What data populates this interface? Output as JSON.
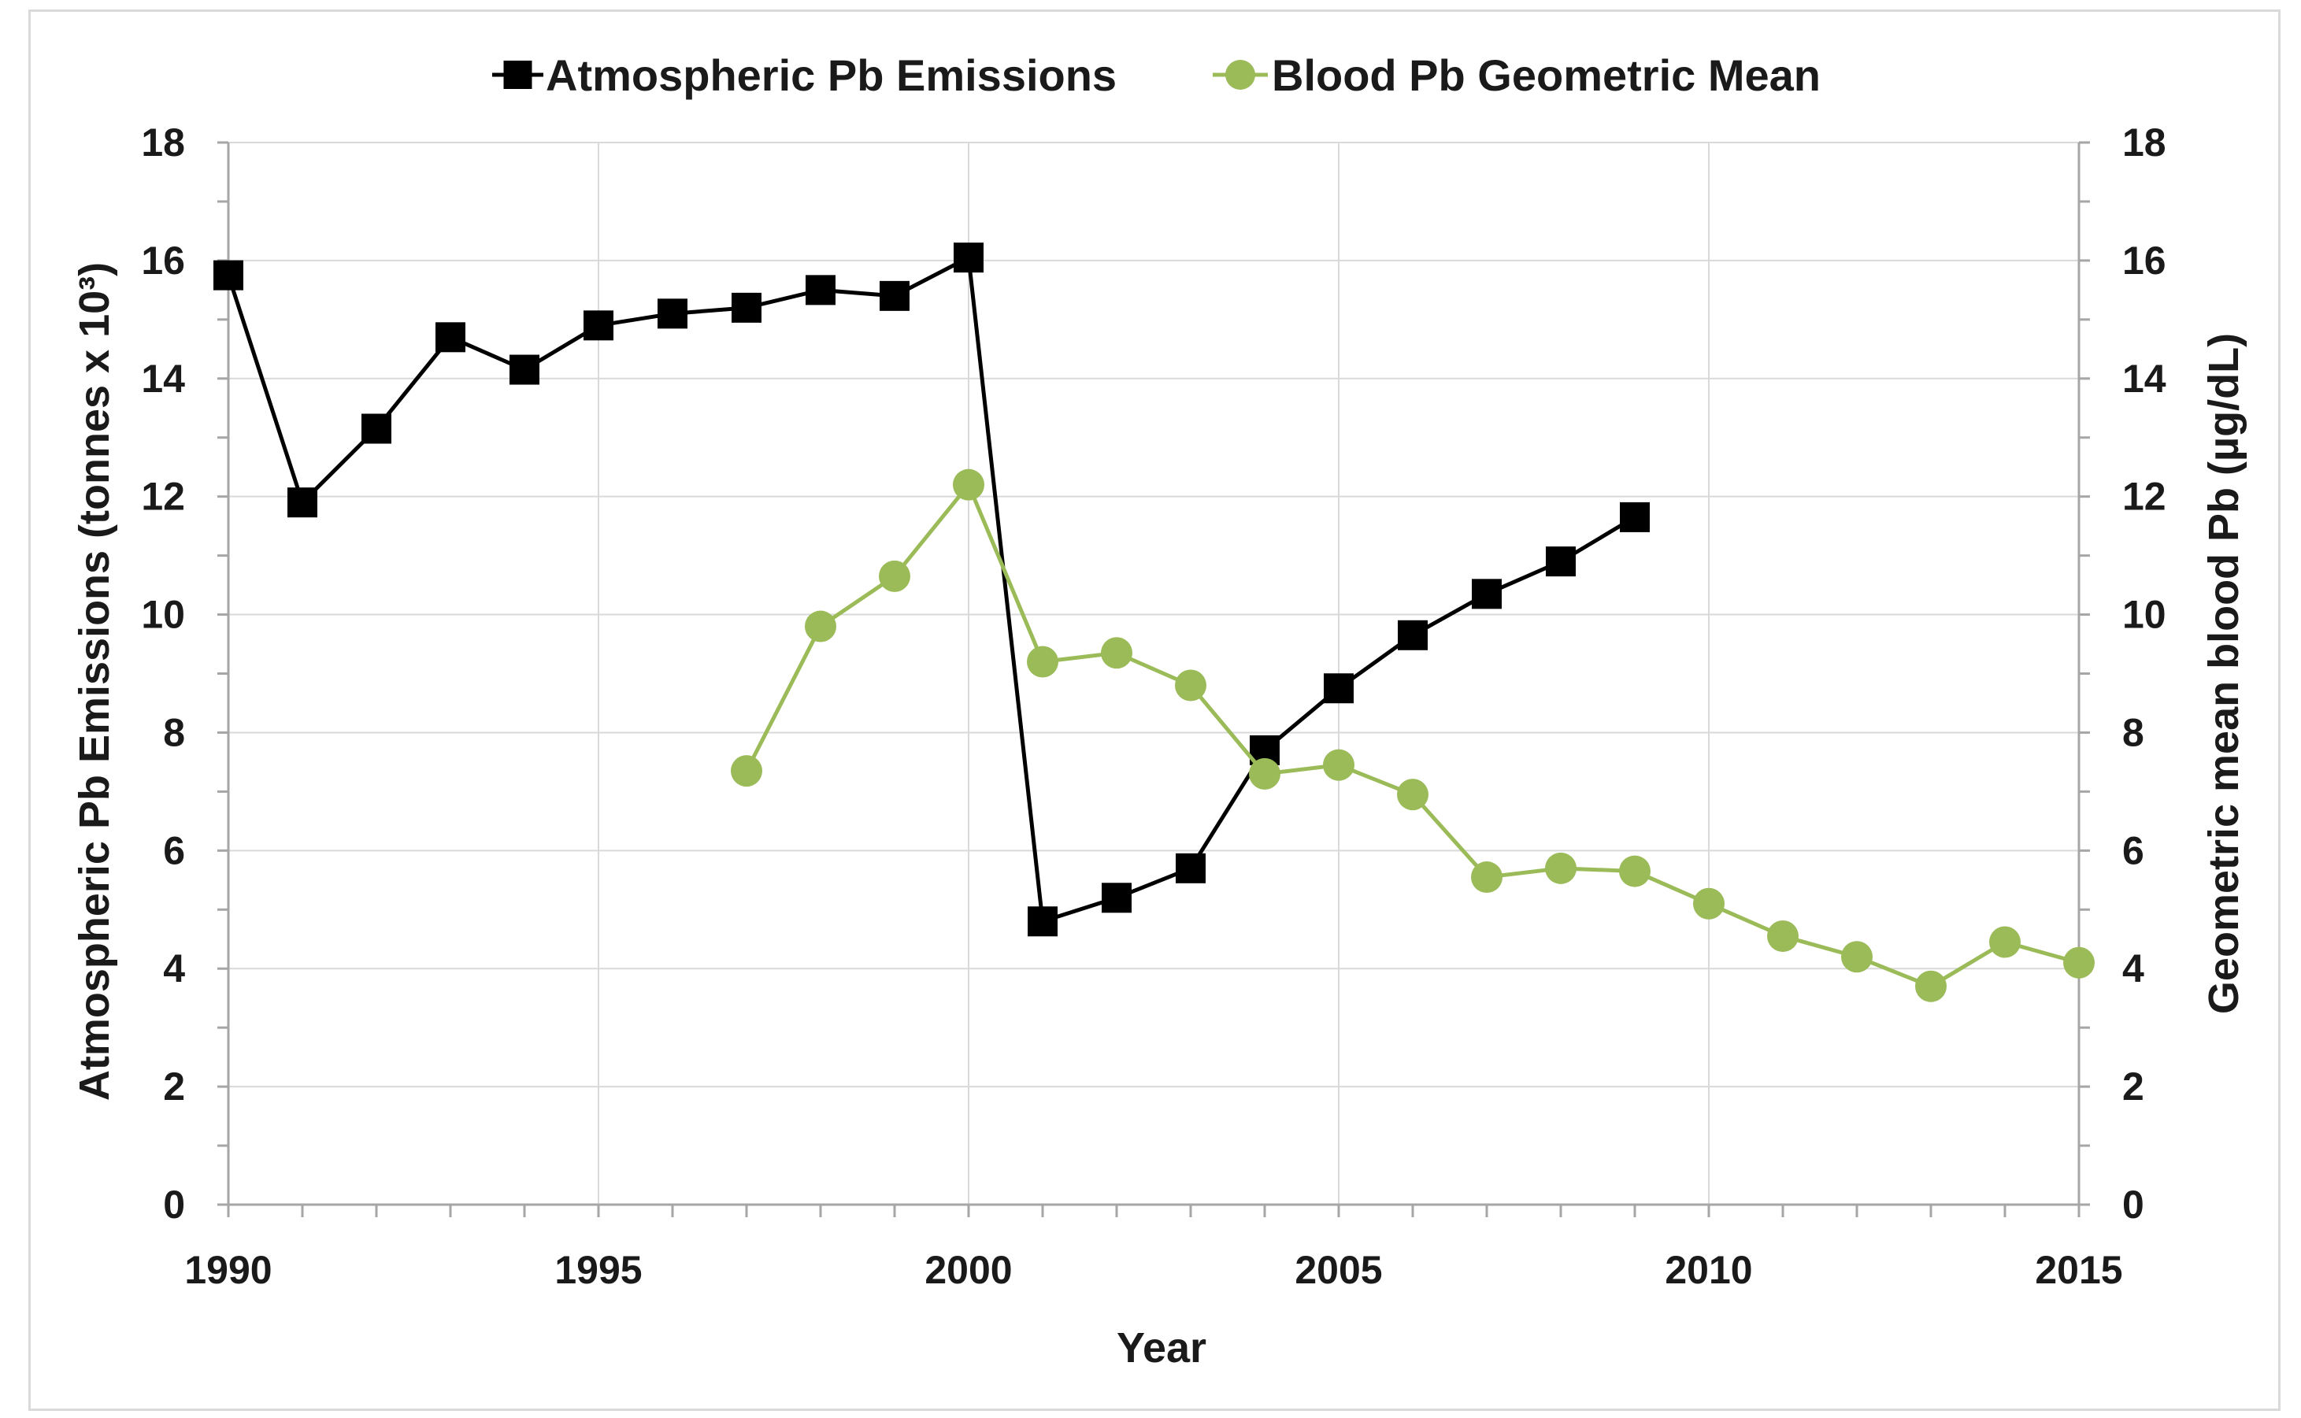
{
  "chart_data": {
    "type": "line",
    "x_axis": {
      "label": "Year",
      "range": [
        1990,
        2015
      ],
      "ticks": [
        1990,
        1995,
        2000,
        2005,
        2010,
        2015
      ],
      "tick_labels": [
        "1990",
        "1995",
        "2000",
        "2005",
        "2010",
        "2015"
      ]
    },
    "y_axis_left": {
      "label": "Atmospheric Pb Emissions (tonnes x 10³)",
      "range": [
        0,
        18
      ],
      "ticks": [
        0,
        2,
        4,
        6,
        8,
        10,
        12,
        14,
        16,
        18
      ],
      "tick_labels": [
        "0",
        "2",
        "4",
        "6",
        "8",
        "10",
        "12",
        "14",
        "16",
        "18"
      ]
    },
    "y_axis_right": {
      "label": "Geometric mean blood Pb (µg/dL)",
      "range": [
        0,
        18
      ],
      "ticks": [
        0,
        2,
        4,
        6,
        8,
        10,
        12,
        14,
        16,
        18
      ],
      "tick_labels": [
        "0",
        "2",
        "4",
        "6",
        "8",
        "10",
        "12",
        "14",
        "16",
        "18"
      ]
    },
    "grid": true,
    "legend_position": "top",
    "series": [
      {
        "name": "Atmospheric Pb Emissions",
        "axis": "left",
        "color": "#000000",
        "marker": "square",
        "x": [
          1990,
          1991,
          1992,
          1993,
          1994,
          1995,
          1996,
          1997,
          1998,
          1999,
          2000,
          2001,
          2002,
          2003,
          2004,
          2005,
          2006,
          2007,
          2008,
          2009
        ],
        "y": [
          15.75,
          11.9,
          13.15,
          14.7,
          14.15,
          14.9,
          15.1,
          15.2,
          15.5,
          15.4,
          16.05,
          4.8,
          5.2,
          5.7,
          7.7,
          8.75,
          9.65,
          10.35,
          10.9,
          11.65
        ]
      },
      {
        "name": "Blood Pb Geometric Mean",
        "axis": "right",
        "color": "#9bbb59",
        "marker": "circle",
        "x": [
          1997,
          1998,
          1999,
          2000,
          2001,
          2002,
          2003,
          2004,
          2005,
          2006,
          2007,
          2008,
          2009,
          2010,
          2011,
          2012,
          2013,
          2014,
          2015
        ],
        "y": [
          7.35,
          9.8,
          10.65,
          12.2,
          9.2,
          9.35,
          8.8,
          7.3,
          7.45,
          6.95,
          5.55,
          5.7,
          5.65,
          5.1,
          4.55,
          4.2,
          3.7,
          4.45,
          4.1
        ]
      }
    ]
  }
}
